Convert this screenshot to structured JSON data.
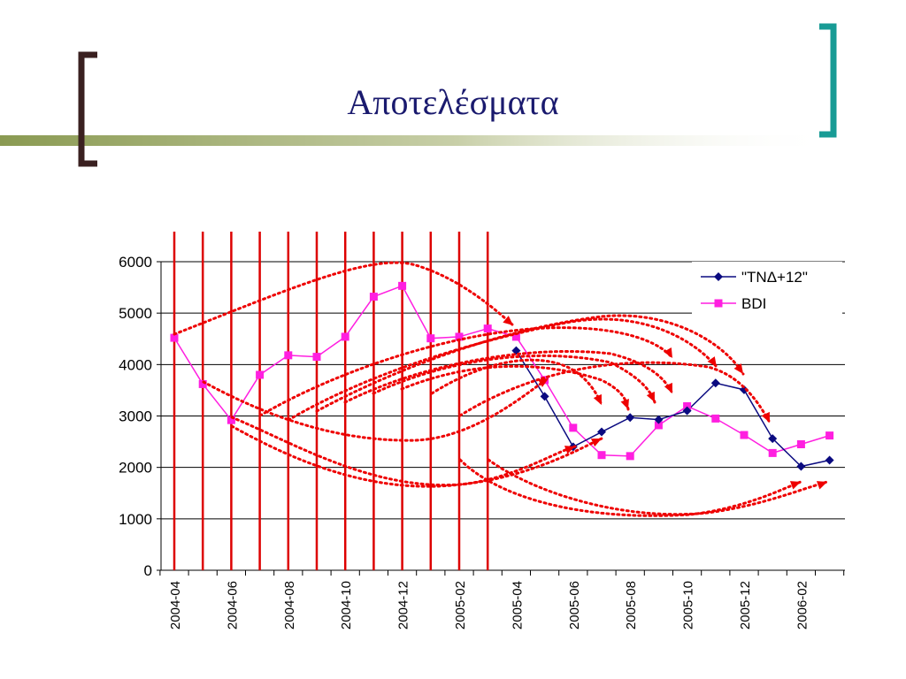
{
  "slide": {
    "title": "Αποτελέσματα"
  },
  "colors": {
    "left_bracket": "#3a2020",
    "right_bracket": "#189b95",
    "header_bar": "#8a9a52",
    "series1": "#0a0a80",
    "series2": "#ff1fe0",
    "window_lines": "#dd0000",
    "arrows": "#ee0000"
  },
  "chart_data": {
    "type": "line",
    "x": [
      "2004-04",
      "2004-05",
      "2004-06",
      "2004-07",
      "2004-08",
      "2004-09",
      "2004-10",
      "2004-11",
      "2004-12",
      "2005-01",
      "2005-02",
      "2005-03",
      "2005-04",
      "2005-05",
      "2005-06",
      "2005-07",
      "2005-08",
      "2005-09",
      "2005-10",
      "2005-11",
      "2005-12",
      "2006-01",
      "2006-02",
      "2006-03"
    ],
    "x_tick_labels": [
      "2004-04",
      "2004-06",
      "2004-08",
      "2004-10",
      "2004-12",
      "2005-02",
      "2005-04",
      "2005-06",
      "2005-08",
      "2005-10",
      "2005-12",
      "2006-02"
    ],
    "series": [
      {
        "name": "\"ΤΝΔ+12\"",
        "marker": "diamond",
        "values": [
          null,
          null,
          null,
          null,
          null,
          null,
          null,
          null,
          null,
          null,
          null,
          null,
          4270,
          3380,
          2400,
          2690,
          2970,
          2930,
          3100,
          3640,
          3510,
          2560,
          2020,
          2140
        ]
      },
      {
        "name": "BDI",
        "marker": "square",
        "values": [
          4520,
          3620,
          2920,
          3800,
          4180,
          4150,
          4540,
          5320,
          5530,
          4510,
          4540,
          4700,
          4540,
          3700,
          2770,
          2240,
          2220,
          2820,
          3190,
          2950,
          2630,
          2280,
          2450,
          2620
        ]
      }
    ],
    "ylim": [
      0,
      6000
    ],
    "yticks": [
      0,
      1000,
      2000,
      3000,
      4000,
      5000,
      6000
    ],
    "grid": "horizontal",
    "legend": "top-right",
    "annotations": "vertical red lines marking monthly windows 2004-04 to 2005-03 with dotted red forecast arrows"
  }
}
